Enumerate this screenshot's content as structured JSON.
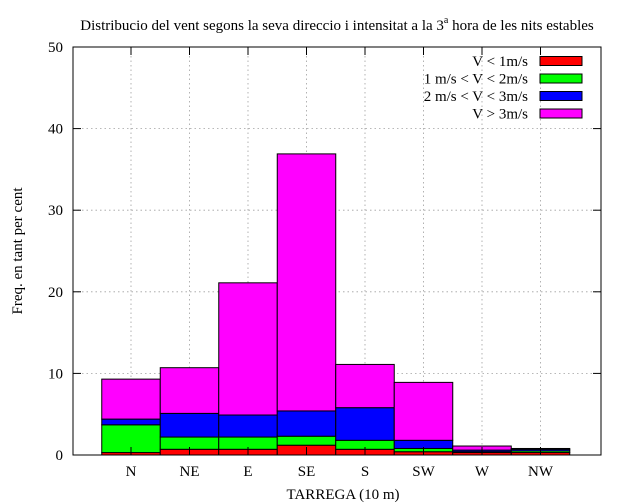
{
  "chart_data": {
    "type": "bar",
    "stacked": true,
    "title": "Distribucio del vent segons la seva direccio i intensitat a la 3",
    "title_superscript": "a",
    "title_suffix": " hora de les nits estables",
    "xlabel": "TARREGA (10 m)",
    "ylabel": "Freq. en tant per cent",
    "ylim": [
      0,
      50
    ],
    "yticks": [
      0,
      10,
      20,
      30,
      40,
      50
    ],
    "grid": true,
    "legend_position": "top-right",
    "categories": [
      "N",
      "NE",
      "E",
      "SE",
      "S",
      "SW",
      "W",
      "NW"
    ],
    "series": [
      {
        "name": "V < 1m/s",
        "color": "#ff0000",
        "values": [
          0.3,
          0.7,
          0.7,
          1.2,
          0.7,
          0.4,
          0.3,
          0.3
        ]
      },
      {
        "name": "1 m/s < V < 2m/s",
        "color": "#00ff00",
        "values": [
          3.4,
          1.5,
          1.5,
          1.1,
          1.1,
          0.4,
          0.1,
          0.2
        ]
      },
      {
        "name": "2 m/s < V < 3m/s",
        "color": "#0000ff",
        "values": [
          0.7,
          2.9,
          2.7,
          3.1,
          4.0,
          1.0,
          0.2,
          0.2
        ]
      },
      {
        "name": "V > 3m/s",
        "color": "#ff00ff",
        "values": [
          4.9,
          5.6,
          16.2,
          31.5,
          5.3,
          7.1,
          0.5,
          0.1
        ]
      }
    ]
  }
}
